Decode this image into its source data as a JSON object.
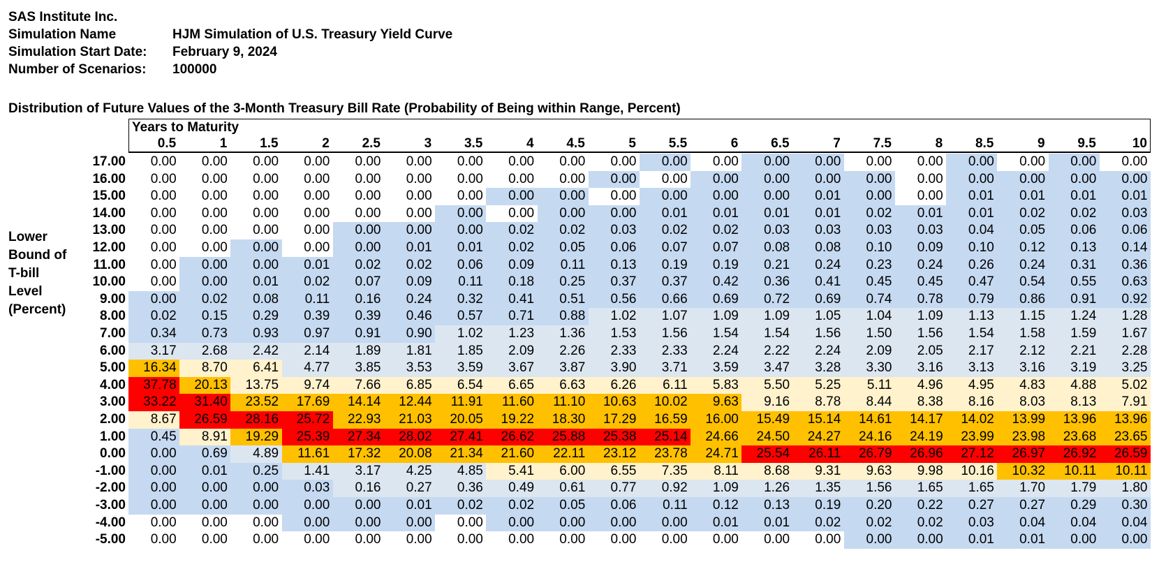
{
  "header": {
    "company": "SAS Institute Inc.",
    "simulation_name_label": "Simulation Name",
    "simulation_name": "HJM Simulation of U.S. Treasury Yield Curve",
    "start_date_label": "Simulation Start Date:",
    "start_date": "February 9, 2024",
    "scenarios_label": "Number of Scenarios:",
    "scenarios": "100000"
  },
  "chart_data": {
    "type": "heatmap",
    "title": "Distribution of Future Values of the 3-Month Treasury Bill Rate (Probability of Being within Range, Percent)",
    "xlabel": "Years to Maturity",
    "ylabel_lines": [
      "Lower",
      "Bound of",
      "T-bill",
      "Level",
      "(Percent)"
    ],
    "x": [
      "0.5",
      "1",
      "1.5",
      "2",
      "2.5",
      "3",
      "3.5",
      "4",
      "4.5",
      "5",
      "5.5",
      "6",
      "6.5",
      "7",
      "7.5",
      "8",
      "8.5",
      "9",
      "9.5",
      "10"
    ],
    "y": [
      "17.00",
      "16.00",
      "15.00",
      "14.00",
      "13.00",
      "12.00",
      "11.00",
      "10.00",
      "9.00",
      "8.00",
      "7.00",
      "6.00",
      "5.00",
      "4.00",
      "3.00",
      "2.00",
      "1.00",
      "0.00",
      "-1.00",
      "-2.00",
      "-3.00",
      "-4.00",
      "-5.00"
    ],
    "values": [
      [
        0.0,
        0.0,
        0.0,
        0.0,
        0.0,
        0.0,
        0.0,
        0.0,
        0.0,
        0.0,
        0.0,
        0.0,
        0.0,
        0.0,
        0.0,
        0.0,
        0.0,
        0.0,
        0.0,
        0.0
      ],
      [
        0.0,
        0.0,
        0.0,
        0.0,
        0.0,
        0.0,
        0.0,
        0.0,
        0.0,
        0.0,
        0.0,
        0.0,
        0.0,
        0.0,
        0.0,
        0.0,
        0.0,
        0.0,
        0.0,
        0.0
      ],
      [
        0.0,
        0.0,
        0.0,
        0.0,
        0.0,
        0.0,
        0.0,
        0.0,
        0.0,
        0.0,
        0.0,
        0.0,
        0.0,
        0.01,
        0.0,
        0.0,
        0.01,
        0.01,
        0.01,
        0.01
      ],
      [
        0.0,
        0.0,
        0.0,
        0.0,
        0.0,
        0.0,
        0.0,
        0.0,
        0.0,
        0.0,
        0.01,
        0.01,
        0.01,
        0.01,
        0.02,
        0.01,
        0.01,
        0.02,
        0.02,
        0.03
      ],
      [
        0.0,
        0.0,
        0.0,
        0.0,
        0.0,
        0.0,
        0.0,
        0.02,
        0.02,
        0.03,
        0.02,
        0.02,
        0.03,
        0.03,
        0.03,
        0.03,
        0.04,
        0.05,
        0.06,
        0.06
      ],
      [
        0.0,
        0.0,
        0.0,
        0.0,
        0.0,
        0.01,
        0.01,
        0.02,
        0.05,
        0.06,
        0.07,
        0.07,
        0.08,
        0.08,
        0.1,
        0.09,
        0.1,
        0.12,
        0.13,
        0.14
      ],
      [
        0.0,
        0.0,
        0.0,
        0.01,
        0.02,
        0.02,
        0.06,
        0.09,
        0.11,
        0.13,
        0.19,
        0.19,
        0.21,
        0.24,
        0.23,
        0.24,
        0.26,
        0.24,
        0.31,
        0.36
      ],
      [
        0.0,
        0.0,
        0.01,
        0.02,
        0.07,
        0.09,
        0.11,
        0.18,
        0.25,
        0.37,
        0.37,
        0.42,
        0.36,
        0.41,
        0.45,
        0.45,
        0.47,
        0.54,
        0.55,
        0.63
      ],
      [
        0.0,
        0.02,
        0.08,
        0.11,
        0.16,
        0.24,
        0.32,
        0.41,
        0.51,
        0.56,
        0.66,
        0.69,
        0.72,
        0.69,
        0.74,
        0.78,
        0.79,
        0.86,
        0.91,
        0.92
      ],
      [
        0.02,
        0.15,
        0.29,
        0.39,
        0.39,
        0.46,
        0.57,
        0.71,
        0.88,
        1.02,
        1.07,
        1.09,
        1.09,
        1.05,
        1.04,
        1.09,
        1.13,
        1.15,
        1.24,
        1.28
      ],
      [
        0.34,
        0.73,
        0.93,
        0.97,
        0.91,
        0.9,
        1.02,
        1.23,
        1.36,
        1.53,
        1.56,
        1.54,
        1.54,
        1.56,
        1.5,
        1.56,
        1.54,
        1.58,
        1.59,
        1.67
      ],
      [
        3.17,
        2.68,
        2.42,
        2.14,
        1.89,
        1.81,
        1.85,
        2.09,
        2.26,
        2.33,
        2.33,
        2.24,
        2.22,
        2.24,
        2.09,
        2.05,
        2.17,
        2.12,
        2.21,
        2.28
      ],
      [
        16.34,
        8.7,
        6.41,
        4.77,
        3.85,
        3.53,
        3.59,
        3.67,
        3.87,
        3.9,
        3.71,
        3.59,
        3.47,
        3.28,
        3.3,
        3.16,
        3.13,
        3.16,
        3.19,
        3.25
      ],
      [
        37.78,
        20.13,
        13.75,
        9.74,
        7.66,
        6.85,
        6.54,
        6.65,
        6.63,
        6.26,
        6.11,
        5.83,
        5.5,
        5.25,
        5.11,
        4.96,
        4.95,
        4.83,
        4.88,
        5.02
      ],
      [
        33.22,
        31.4,
        23.52,
        17.69,
        14.14,
        12.44,
        11.91,
        11.6,
        11.1,
        10.63,
        10.02,
        9.63,
        9.16,
        8.78,
        8.44,
        8.38,
        8.16,
        8.03,
        8.13,
        7.91
      ],
      [
        8.67,
        26.59,
        28.16,
        25.72,
        22.93,
        21.03,
        20.05,
        19.22,
        18.3,
        17.29,
        16.59,
        16.0,
        15.49,
        15.14,
        14.61,
        14.17,
        14.02,
        13.99,
        13.96,
        13.96
      ],
      [
        0.45,
        8.91,
        19.29,
        25.39,
        27.34,
        28.02,
        27.41,
        26.62,
        25.88,
        25.38,
        25.14,
        24.66,
        24.5,
        24.27,
        24.16,
        24.19,
        23.99,
        23.98,
        23.68,
        23.65
      ],
      [
        0.0,
        0.69,
        4.89,
        11.61,
        17.32,
        20.08,
        21.34,
        21.6,
        22.11,
        23.12,
        23.78,
        24.71,
        25.54,
        26.11,
        26.79,
        26.96,
        27.12,
        26.97,
        26.92,
        26.59
      ],
      [
        0.0,
        0.01,
        0.25,
        1.41,
        3.17,
        4.25,
        4.85,
        5.41,
        6.0,
        6.55,
        7.35,
        8.11,
        8.68,
        9.31,
        9.63,
        9.98,
        10.16,
        10.32,
        10.11,
        10.11
      ],
      [
        0.0,
        0.0,
        0.0,
        0.03,
        0.16,
        0.27,
        0.36,
        0.49,
        0.61,
        0.77,
        0.92,
        1.09,
        1.26,
        1.35,
        1.56,
        1.65,
        1.65,
        1.7,
        1.79,
        1.8
      ],
      [
        0.0,
        0.0,
        0.0,
        0.0,
        0.0,
        0.01,
        0.02,
        0.02,
        0.05,
        0.06,
        0.11,
        0.12,
        0.13,
        0.19,
        0.2,
        0.22,
        0.27,
        0.27,
        0.29,
        0.3
      ],
      [
        0.0,
        0.0,
        0.0,
        0.0,
        0.0,
        0.0,
        0.0,
        0.0,
        0.0,
        0.0,
        0.0,
        0.01,
        0.01,
        0.02,
        0.02,
        0.02,
        0.03,
        0.04,
        0.04,
        0.04
      ],
      [
        0.0,
        0.0,
        0.0,
        0.0,
        0.0,
        0.0,
        0.0,
        0.0,
        0.0,
        0.0,
        0.0,
        0.0,
        0.0,
        0.0,
        0.0,
        0.0,
        0.01,
        0.01,
        0.0,
        0.0
      ]
    ],
    "color_classes": [
      "WWWWWWWWWWBWBBWWBWBW",
      "WWWWWWWWWBWBBBBWBBBB",
      "WWWWWWWBBWBBBBBWBBBB",
      "WWWWWWBWBBBBBBBBBBBB",
      "WWWWBBBBBBBBBBBBBBBB",
      "WWBWBBBBBBBBBBBBBBBB",
      "WBBBBBBBBBBBBBBBBBBB",
      "WBBBBBBBBBBBBBBBBBBB",
      "BBBBBBBBBBBBBBBBBBBB",
      "BBBBBBBBBLLLLLLLLLLL",
      "BBBBBBLLLLLLLLLLLLLL",
      "LLLLLLLLLLLLLLLLLLLL",
      "YCCLLLLLLLLLLLLLLLLL",
      "ROCCCCCCCCCCCCCCCCCC",
      "RRYYYYYYYYYYCCCCCCCC",
      "CRRRYYYYYYYYYYYYYYYY",
      "BCYRRRRRRRRYYYYYYYYY",
      "BBLYYYYYYYYYRRRRRRRR",
      "BBBLLLLCCCCCCCCCCYYY",
      "BBBBLLLLLLLLLLLLLLLL",
      "BBBBBBBBBBBBBBBBBBBB",
      "WWWBBBWBBBBBBBBBBBBB",
      "WWWWWWWWWWWWWWBBBBBB"
    ],
    "palette": {
      "W": "#ffffff",
      "B": "#c5d9f1",
      "L": "#dce6f1",
      "C": "#fff2cc",
      "Y": "#ffc000",
      "O": "#ffc000",
      "R": "#ff0000"
    }
  }
}
